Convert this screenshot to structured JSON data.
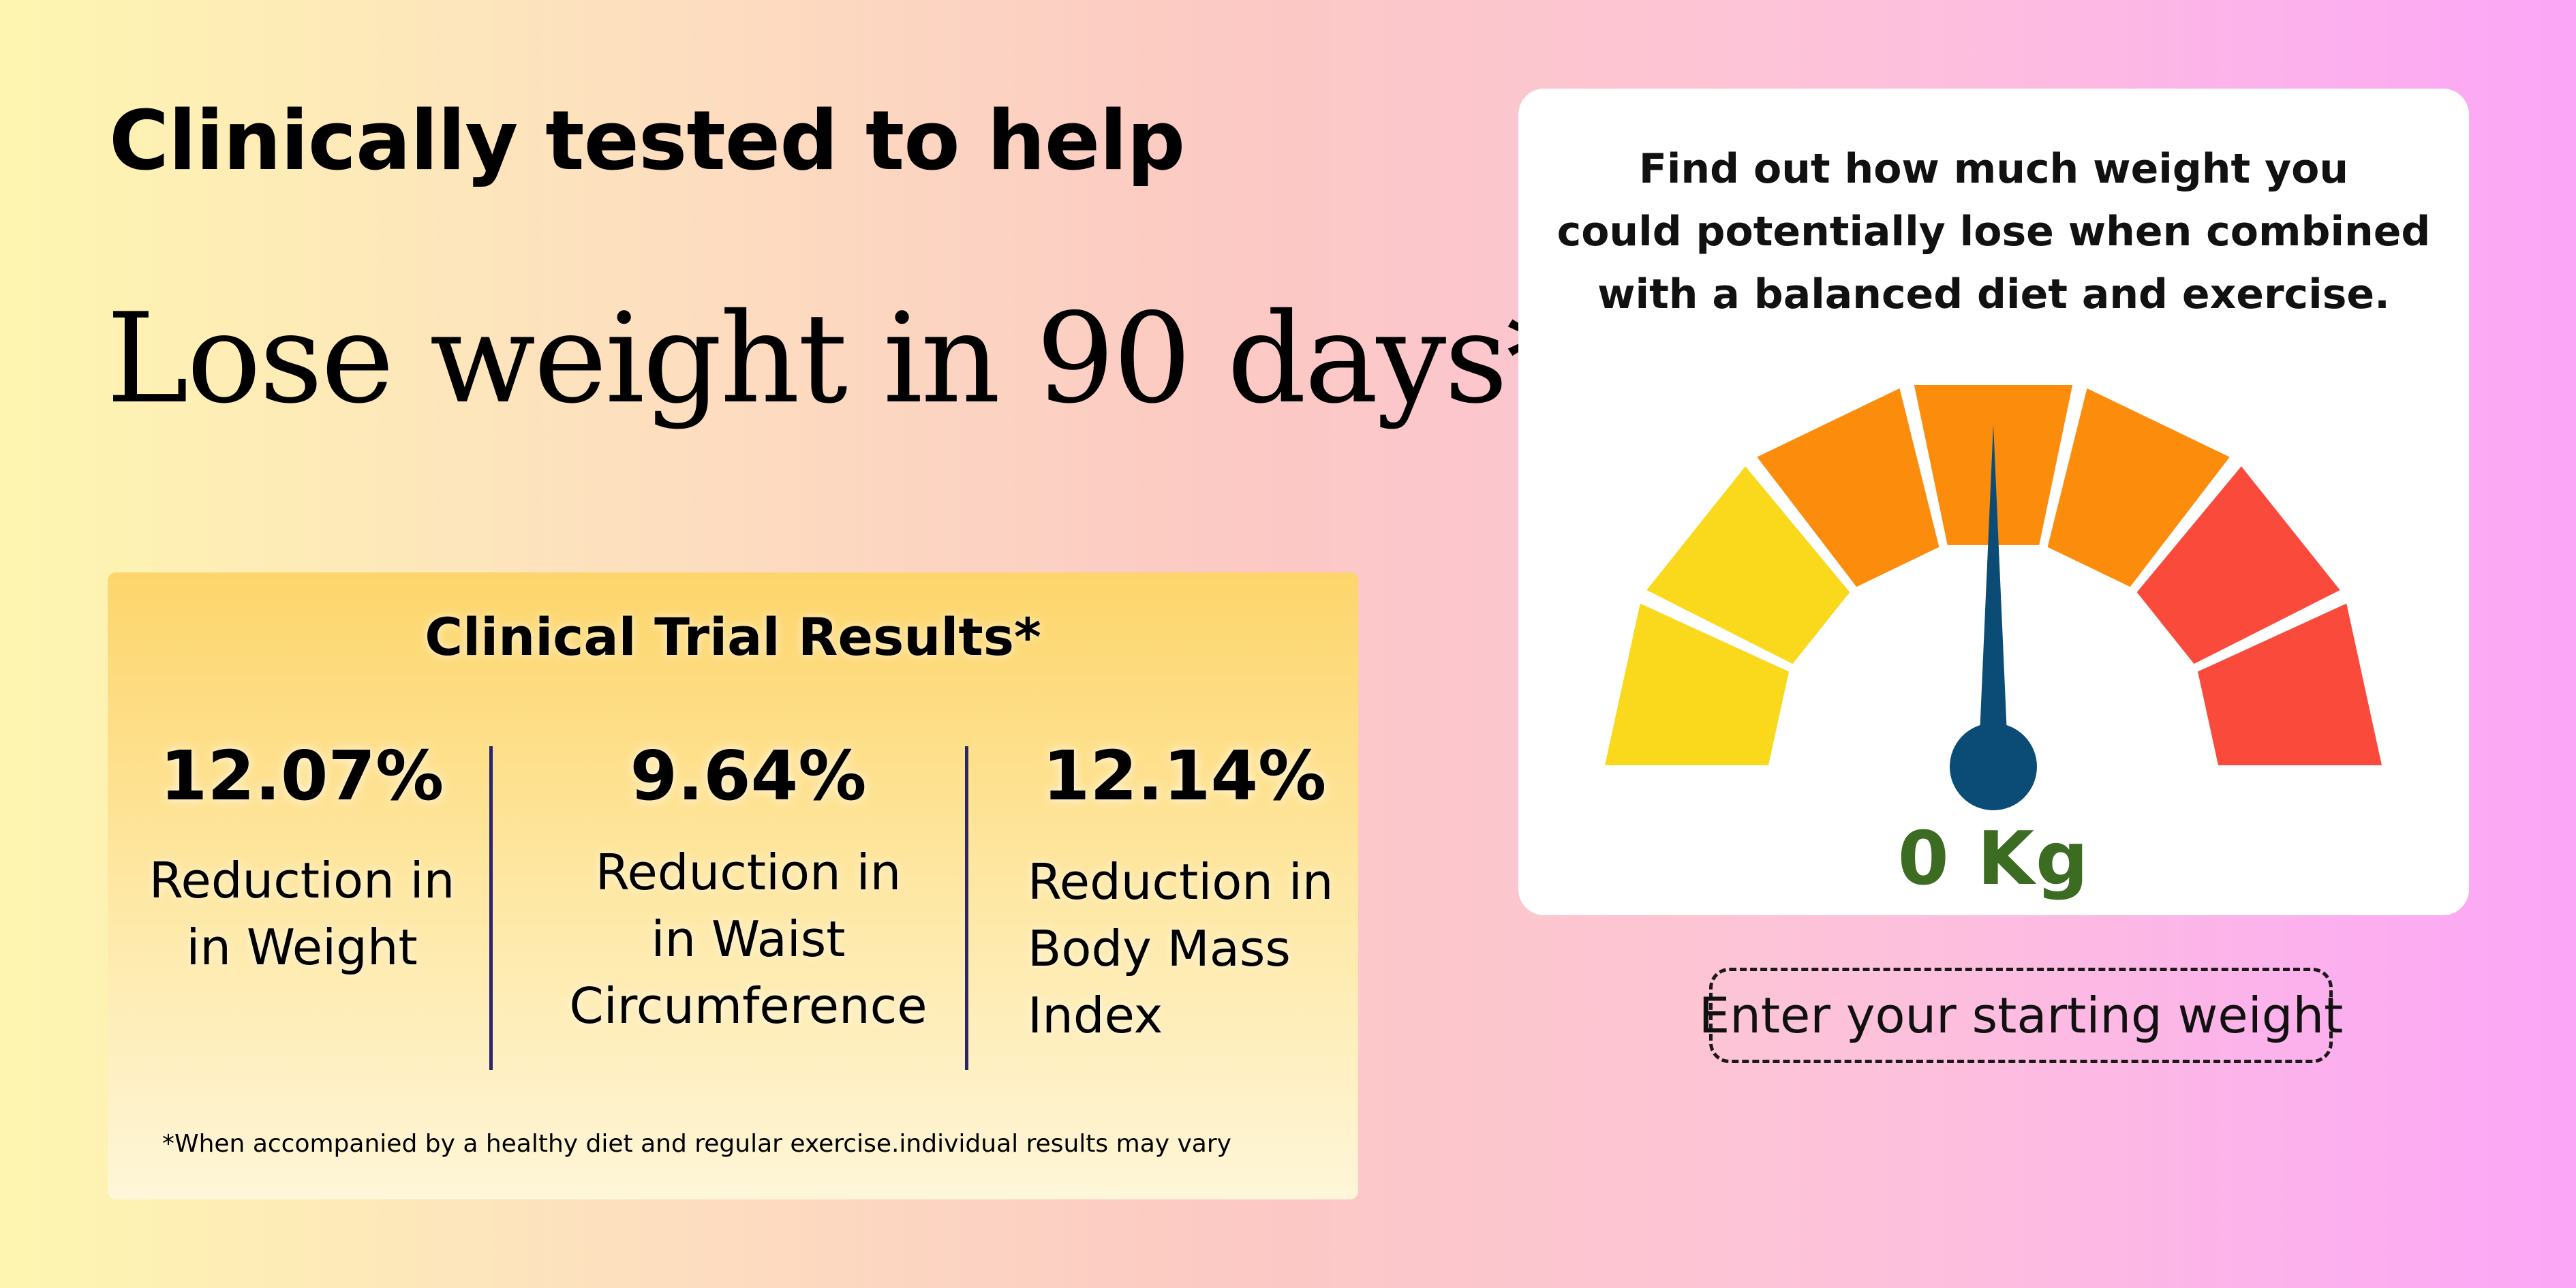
{
  "headline": "Clinically tested to help",
  "title": "Lose weight in 90 days*",
  "results_card": {
    "title": "Clinical Trial Results*",
    "stats": [
      {
        "value": "12.07%",
        "label_lines": [
          "Reduction in",
          "in Weight"
        ]
      },
      {
        "value": "9.64%",
        "label_lines": [
          "Reduction in",
          "in Waist",
          "Circumference"
        ]
      },
      {
        "value": "12.14%",
        "label_lines": [
          "Reduction in",
          "Body Mass",
          "Index"
        ]
      }
    ],
    "footnote": "*When accompanied by a healthy diet and regular exercise.individual results may vary"
  },
  "gauge": {
    "description_lines": [
      "Find out how much weight you",
      "could potentially lose when combined",
      "with a balanced diet and exercise."
    ],
    "reading": "0 Kg",
    "needle_fraction": 0.5,
    "segment_colors": [
      "#fad81b",
      "#fad81b",
      "#fb8c0c",
      "#fb8c0c",
      "#fb8c0c",
      "#fa4a3c",
      "#fa4a3c"
    ],
    "needle_color": "#0b4c76",
    "reading_color": "#3c6b22"
  },
  "weight_input": {
    "placeholder": "Enter your starting weight"
  }
}
